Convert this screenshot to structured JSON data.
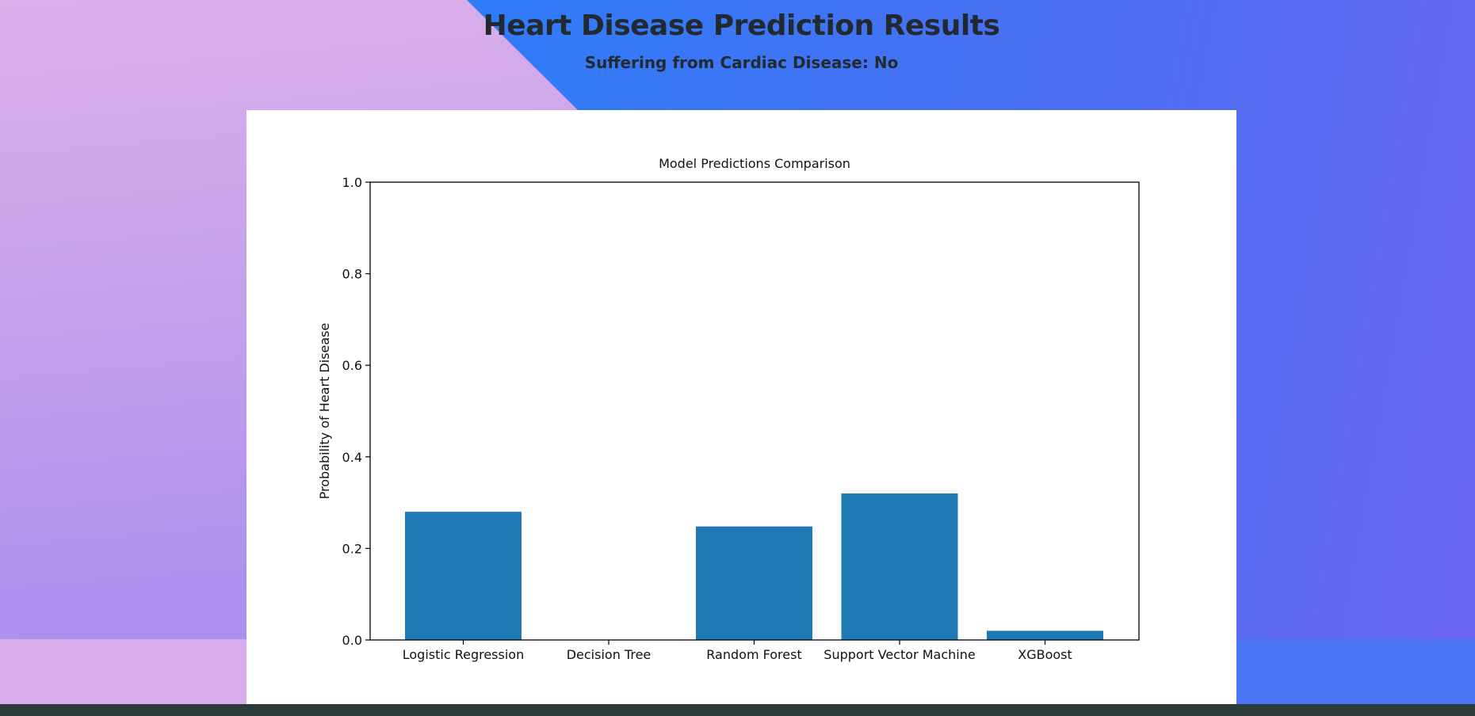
{
  "header": {
    "title": "Heart Disease Prediction Results",
    "result_label": "Suffering from Cardiac Disease:",
    "result_value": "No"
  },
  "colors": {
    "bar": "#1f77b4",
    "gradient_purple": "#c9a3ea",
    "gradient_blue": "#2f7cf8",
    "footer": "#2c3a39"
  },
  "chart_data": {
    "type": "bar",
    "title": "Model Predictions Comparison",
    "xlabel": "",
    "ylabel": "Probability of Heart Disease",
    "ylim": [
      0,
      1.0
    ],
    "yticks": [
      "0.0",
      "0.2",
      "0.4",
      "0.6",
      "0.8",
      "1.0"
    ],
    "categories": [
      "Logistic Regression",
      "Decision Tree",
      "Random Forest",
      "Support Vector Machine",
      "XGBoost"
    ],
    "values": [
      0.28,
      0.0,
      0.248,
      0.32,
      0.02
    ],
    "grid": false,
    "legend": "none"
  }
}
